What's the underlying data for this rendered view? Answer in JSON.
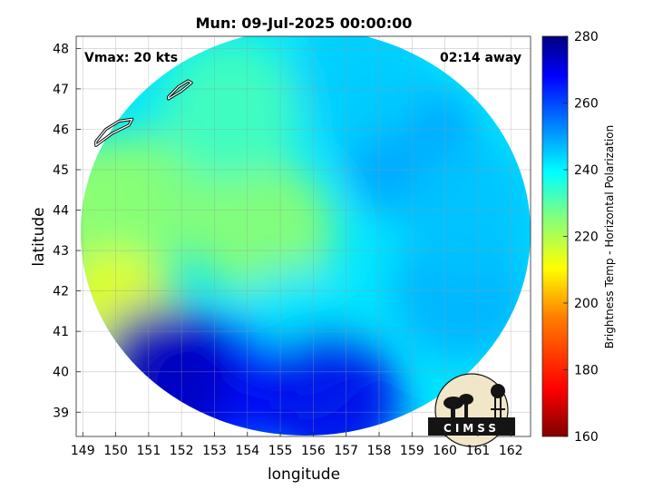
{
  "chart_data": {
    "type": "heatmap",
    "title": "Mun: 09-Jul-2025 00:00:00",
    "xlabel": "longitude",
    "ylabel": "latitude",
    "xlim": [
      148.8,
      162.6
    ],
    "ylim": [
      38.4,
      48.3
    ],
    "x_ticks": [
      "149",
      "150",
      "151",
      "152",
      "153",
      "154",
      "155",
      "156",
      "157",
      "158",
      "159",
      "160",
      "161",
      "162"
    ],
    "y_ticks": [
      "39",
      "40",
      "41",
      "42",
      "43",
      "44",
      "45",
      "46",
      "47",
      "48"
    ],
    "grid": true,
    "annotations": {
      "vmax": "Vmax: 20 kts",
      "distance": "02:14 away"
    },
    "colorbar": {
      "label": "Brightness Temp - Horizontal Polarization",
      "min": 160,
      "max": 280,
      "ticks": [
        "160",
        "180",
        "200",
        "220",
        "240",
        "260",
        "280"
      ]
    },
    "logo_text": "CIMSS",
    "swath_center": {
      "lon": 155.6,
      "lat": 43.6
    },
    "regions": [
      {
        "lon": 149.5,
        "lat": 44.0,
        "value": 222
      },
      {
        "lon": 150.8,
        "lat": 44.2,
        "value": 225
      },
      {
        "lon": 154.5,
        "lat": 43.5,
        "value": 224
      },
      {
        "lon": 150.0,
        "lat": 41.2,
        "value": 212
      },
      {
        "lon": 153.5,
        "lat": 46.5,
        "value": 232
      },
      {
        "lon": 159.0,
        "lat": 45.5,
        "value": 250
      },
      {
        "lon": 160.5,
        "lat": 42.0,
        "value": 248
      },
      {
        "lon": 155.5,
        "lat": 40.8,
        "value": 242
      },
      {
        "lon": 153.0,
        "lat": 39.6,
        "value": 268
      },
      {
        "lon": 156.5,
        "lat": 39.3,
        "value": 270
      },
      {
        "lon": 151.5,
        "lat": 39.9,
        "value": 274
      },
      {
        "lon": 160.8,
        "lat": 44.0,
        "value": 246
      },
      {
        "lon": 157.5,
        "lat": 47.3,
        "value": 245
      }
    ],
    "islands": [
      [
        [
          149.4,
          45.6
        ],
        [
          149.9,
          45.9
        ],
        [
          150.4,
          46.1
        ],
        [
          150.5,
          46.25
        ],
        [
          150.1,
          46.2
        ],
        [
          149.7,
          46.0
        ],
        [
          149.4,
          45.7
        ]
      ],
      [
        [
          151.6,
          46.75
        ],
        [
          152.0,
          46.95
        ],
        [
          152.3,
          47.15
        ],
        [
          152.2,
          47.2
        ],
        [
          151.9,
          47.05
        ],
        [
          151.6,
          46.8
        ]
      ]
    ]
  }
}
